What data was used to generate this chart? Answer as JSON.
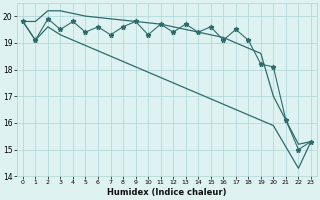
{
  "xlabel": "Humidex (Indice chaleur)",
  "x": [
    0,
    1,
    2,
    3,
    4,
    5,
    6,
    7,
    8,
    9,
    10,
    11,
    12,
    13,
    14,
    15,
    16,
    17,
    18,
    19,
    20,
    21,
    22,
    23
  ],
  "zigzag": [
    19.8,
    19.1,
    19.9,
    19.5,
    19.8,
    19.4,
    19.6,
    19.3,
    19.6,
    19.8,
    19.3,
    19.7,
    19.4,
    19.7,
    19.4,
    19.6,
    19.1,
    19.5,
    19.1,
    18.2,
    18.1,
    16.1,
    15.0,
    15.3
  ],
  "upper_env": [
    19.8,
    19.8,
    20.2,
    20.2,
    20.1,
    20.0,
    19.95,
    19.9,
    19.85,
    19.8,
    19.75,
    19.7,
    19.6,
    19.5,
    19.4,
    19.3,
    19.2,
    19.0,
    18.8,
    18.6,
    17.0,
    16.1,
    15.2,
    15.3
  ],
  "lower_env": [
    19.8,
    19.1,
    19.6,
    19.3,
    19.1,
    18.9,
    18.7,
    18.5,
    18.3,
    18.1,
    17.9,
    17.7,
    17.5,
    17.3,
    17.1,
    16.9,
    16.7,
    16.5,
    16.3,
    16.1,
    15.9,
    15.1,
    14.3,
    15.3
  ],
  "line_color": "#2e6b6b",
  "bg_color": "#dff2f2",
  "grid_color": "#aed4d4",
  "ylim": [
    14,
    20.5
  ],
  "yticks": [
    14,
    15,
    16,
    17,
    18,
    19,
    20
  ],
  "xticks": [
    0,
    1,
    2,
    3,
    4,
    5,
    6,
    7,
    8,
    9,
    10,
    11,
    12,
    13,
    14,
    15,
    16,
    17,
    18,
    19,
    20,
    21,
    22,
    23
  ]
}
